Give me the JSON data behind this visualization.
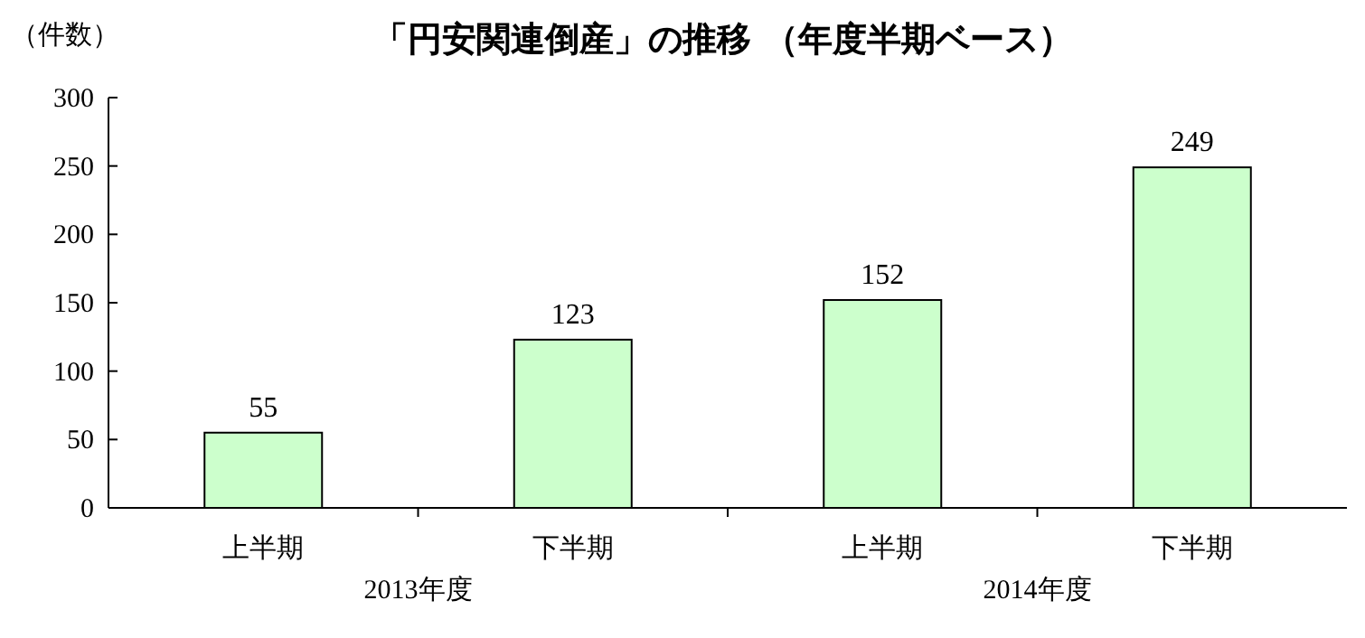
{
  "chart_data": {
    "type": "bar",
    "title": "「円安関連倒産」の推移 （年度半期ベース）",
    "ylabel": "（件数）",
    "categories": [
      "上半期",
      "下半期",
      "上半期",
      "下半期"
    ],
    "values": [
      55,
      123,
      152,
      249
    ],
    "color": "#ccffcc",
    "data_labels": true,
    "ylim": [
      0,
      300
    ],
    "yticks": [
      0,
      50,
      100,
      150,
      200,
      250,
      300
    ],
    "annotations": [
      "2013年度",
      "2014年度"
    ]
  }
}
